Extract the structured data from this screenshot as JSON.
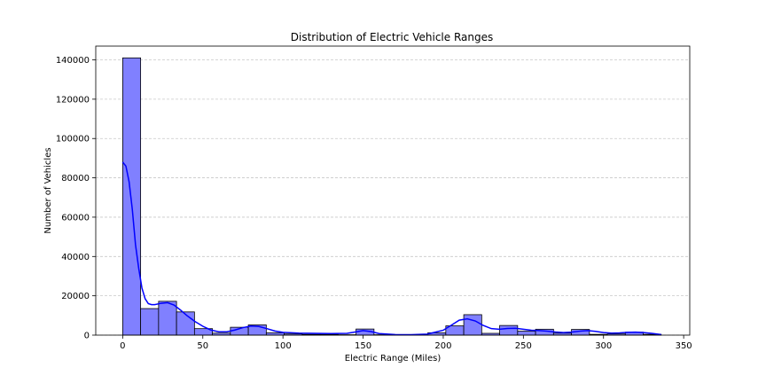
{
  "chart_data": {
    "type": "bar",
    "title": "Distribution of Electric Vehicle Ranges",
    "xlabel": "Electric Range (Miles)",
    "ylabel": "Number of Vehicles",
    "xlim": [
      -16.8,
      353.8
    ],
    "ylim": [
      0,
      147000
    ],
    "x_ticks": [
      0,
      50,
      100,
      150,
      200,
      250,
      300,
      350
    ],
    "y_ticks": [
      0,
      20000,
      40000,
      60000,
      80000,
      100000,
      120000,
      140000
    ],
    "grid": {
      "axis": "y",
      "style": "dashed"
    },
    "bin_edges": [
      0,
      11.2,
      22.4,
      33.6,
      44.8,
      56,
      67.2,
      78.4,
      89.6,
      100.8,
      112,
      123.2,
      134.4,
      145.6,
      156.8,
      168,
      179.2,
      190.4,
      201.6,
      212.8,
      224,
      235.2,
      246.4,
      257.6,
      268.8,
      280,
      291.2,
      302.4,
      313.6,
      324.8,
      336
    ],
    "counts": [
      141000,
      13500,
      17200,
      11800,
      3300,
      1000,
      4000,
      5200,
      1200,
      600,
      400,
      400,
      200,
      3100,
      200,
      100,
      100,
      1200,
      4700,
      10400,
      900,
      4900,
      2000,
      3000,
      1000,
      2900,
      400,
      600,
      1500,
      400
    ],
    "kde": {
      "x": [
        0,
        2,
        4,
        6,
        8,
        10,
        12,
        14,
        16,
        18,
        20,
        24,
        28,
        32,
        36,
        40,
        45,
        50,
        55,
        60,
        65,
        70,
        75,
        80,
        85,
        90,
        95,
        100,
        110,
        120,
        130,
        140,
        145,
        150,
        155,
        160,
        170,
        180,
        190,
        200,
        205,
        210,
        215,
        220,
        225,
        230,
        235,
        240,
        245,
        250,
        255,
        260,
        265,
        270,
        275,
        280,
        285,
        290,
        295,
        300,
        305,
        310,
        315,
        320,
        325,
        330,
        336
      ],
      "y": [
        88000,
        86000,
        78000,
        64000,
        46000,
        34000,
        24000,
        18500,
        16000,
        15500,
        15500,
        16200,
        16500,
        15300,
        12800,
        10000,
        7000,
        4500,
        2600,
        1700,
        1700,
        2600,
        3800,
        4600,
        4400,
        3300,
        2100,
        1400,
        1000,
        900,
        800,
        900,
        1600,
        2300,
        1800,
        800,
        300,
        200,
        500,
        2500,
        5000,
        7600,
        8300,
        7200,
        4900,
        3300,
        3000,
        3400,
        3500,
        3000,
        2500,
        2300,
        2000,
        1600,
        1300,
        1500,
        2000,
        2300,
        1900,
        1300,
        1000,
        1100,
        1400,
        1500,
        1300,
        900,
        300
      ]
    },
    "bar_color": "#8080ff",
    "bar_edge_color": "#000000",
    "kde_color": "#0000ff",
    "grid_color": "#c8c8c8"
  }
}
